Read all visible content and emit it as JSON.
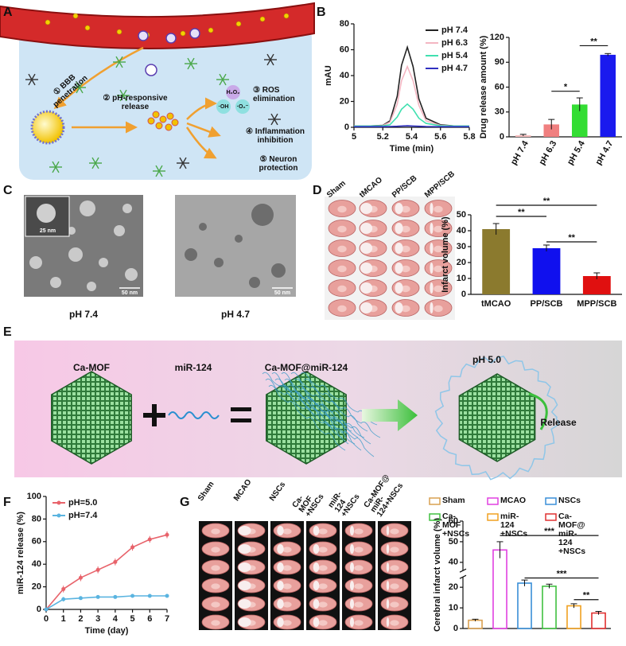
{
  "panel_labels": [
    "A",
    "B",
    "C",
    "D",
    "E",
    "F",
    "G"
  ],
  "panel_a": {
    "steps": [
      "① BBB penetration",
      "② pH-responsive release",
      "③ ROS elimination",
      "④ Inflammation inhibition",
      "⑤ Neuron protection"
    ],
    "species": [
      "H₂O₂",
      "·OH",
      "·O₂⁻"
    ]
  },
  "panel_c": {
    "images": [
      {
        "label": "pH 7.4",
        "scale_bar": "50 nm",
        "inset_scale_bar": "25 nm"
      },
      {
        "label": "pH 4.7",
        "scale_bar": "50 nm"
      }
    ]
  },
  "panel_d": {
    "columns": [
      "Sham",
      "tMCAO",
      "PP/SCB",
      "MPP/SCB"
    ]
  },
  "panel_e": {
    "labels": [
      "Ca-MOF",
      "miR-124",
      "Ca-MOF@miR-124",
      "pH 5.0",
      "Release"
    ]
  },
  "panel_g": {
    "columns": [
      "Sham",
      "MCAO",
      "NSCs",
      "Ca-MOF +NSCs",
      "miR-124 +NSCs",
      "Ca-MOF@ miR-124+NSCs"
    ]
  },
  "chart_data": [
    {
      "type": "line",
      "xlabel": "Time (min)",
      "ylabel": "mAU",
      "x": [
        5,
        5.1,
        5.2,
        5.25,
        5.3,
        5.33,
        5.37,
        5.41,
        5.45,
        5.5,
        5.6,
        5.7,
        5.8
      ],
      "series": [
        {
          "name": "pH 7.4",
          "color": "#222222",
          "values": [
            1,
            1,
            1.5,
            5,
            24,
            48,
            62,
            47,
            22,
            7,
            2,
            1,
            1
          ]
        },
        {
          "name": "pH 6.3",
          "color": "#f4b6c2",
          "values": [
            1,
            1,
            1.3,
            4,
            18,
            36,
            47,
            36,
            17,
            5,
            1.5,
            1,
            1
          ]
        },
        {
          "name": "pH 5.4",
          "color": "#40e0b0",
          "values": [
            1,
            1,
            1.1,
            2,
            8,
            14,
            18,
            14,
            7,
            3,
            1.2,
            1,
            1
          ]
        },
        {
          "name": "pH 4.7",
          "color": "#3030c0",
          "values": [
            0.5,
            0.5,
            0.5,
            0.6,
            0.8,
            1,
            1.2,
            1,
            0.8,
            0.6,
            0.5,
            0.5,
            0.5
          ]
        }
      ],
      "xlim": [
        5,
        5.8
      ],
      "xticks": [
        5,
        5.2,
        5.4,
        5.6,
        5.8
      ],
      "ylim": [
        0,
        80
      ],
      "yticks": [
        0,
        20,
        40,
        60,
        80
      ],
      "legend": "upper right",
      "markers": false
    },
    {
      "type": "bar",
      "ylabel": "Drug release amount (%)",
      "categories": [
        "pH 7.4",
        "pH 6.3",
        "pH 5.4",
        "pH 4.7"
      ],
      "values": [
        2,
        15,
        39,
        99
      ],
      "errors": [
        1,
        6,
        8,
        1.5
      ],
      "colors": [
        "#f9c0c0",
        "#f08080",
        "#33dd33",
        "#1a1aee"
      ],
      "ylim": [
        0,
        120
      ],
      "yticks": [
        0,
        30,
        60,
        90,
        120
      ],
      "xtick_rotation": -60,
      "annotations": [
        {
          "text": "*",
          "between": [
            "pH 6.3",
            "pH 5.4"
          ],
          "y": 55
        },
        {
          "text": "**",
          "between": [
            "pH 5.4",
            "pH 4.7"
          ],
          "y": 110
        }
      ]
    },
    {
      "type": "bar",
      "ylabel": "Infarct volume (%)",
      "categories": [
        "tMCAO",
        "PP/SCB",
        "MPP/SCB"
      ],
      "values": [
        41,
        29,
        11.5
      ],
      "errors": [
        3.5,
        2,
        2
      ],
      "colors": [
        "#8b7a2e",
        "#1010ee",
        "#e01010"
      ],
      "ylim": [
        0,
        50
      ],
      "yticks": [
        0,
        10,
        20,
        30,
        40,
        50
      ],
      "annotations": [
        {
          "text": "**",
          "between": [
            "tMCAO",
            "MPP/SCB"
          ],
          "y": 56
        },
        {
          "text": "**",
          "between": [
            "tMCAO",
            "PP/SCB"
          ],
          "y": 49
        },
        {
          "text": "**",
          "between": [
            "PP/SCB",
            "MPP/SCB"
          ],
          "y": 33
        }
      ]
    },
    {
      "type": "line",
      "xlabel": "Time (day)",
      "ylabel": "miR-124 release (%)",
      "x": [
        0,
        1,
        2,
        3,
        4,
        5,
        6,
        7
      ],
      "series": [
        {
          "name": "pH=5.0",
          "color": "#e8636b",
          "values": [
            0,
            18,
            28,
            35,
            42,
            55,
            62,
            66
          ],
          "errors": [
            0,
            3,
            3,
            3,
            3,
            3,
            3,
            3
          ]
        },
        {
          "name": "pH=7.4",
          "color": "#5ab4e0",
          "values": [
            0,
            9,
            10,
            11,
            11,
            12,
            12,
            12
          ],
          "errors": [
            0,
            2,
            1,
            1,
            1,
            1,
            1,
            1
          ]
        }
      ],
      "xlim": [
        0,
        7
      ],
      "xticks": [
        0,
        1,
        2,
        3,
        4,
        5,
        6,
        7
      ],
      "ylim": [
        0,
        100
      ],
      "yticks": [
        0,
        20,
        40,
        60,
        80,
        100
      ],
      "legend": "upper left",
      "markers": true
    },
    {
      "type": "bar",
      "ylabel": "Cerebral infarct volume (%)",
      "categories": [
        "Sham",
        "MCAO",
        "NSCs",
        "Ca-MOF +NSCs",
        "miR-124 +NSCs",
        "Ca-MOF@ miR-124 +NSCs"
      ],
      "values": [
        4,
        46,
        22,
        20.5,
        11,
        7.5
      ],
      "errors": [
        0.5,
        4,
        1.5,
        1,
        1,
        0.8
      ],
      "colors": [
        "#d9a050",
        "#e040e0",
        "#3a8fd8",
        "#40c040",
        "#f0a020",
        "#e03030"
      ],
      "bar_style": "outline",
      "legend": "top",
      "ylim": [
        0,
        60
      ],
      "yticks": [
        0,
        10,
        20,
        40,
        50,
        60
      ],
      "axis_break": [
        25,
        36
      ],
      "annotations": [
        {
          "text": "***",
          "between": [
            "MCAO",
            "Ca-MOF@ miR-124 +NSCs"
          ],
          "y": 53
        },
        {
          "text": "***",
          "between": [
            "NSCs",
            "Ca-MOF@ miR-124 +NSCs"
          ],
          "y": 24.5
        },
        {
          "text": "**",
          "between": [
            "miR-124 +NSCs",
            "Ca-MOF@ miR-124 +NSCs"
          ],
          "y": 14
        }
      ]
    }
  ]
}
